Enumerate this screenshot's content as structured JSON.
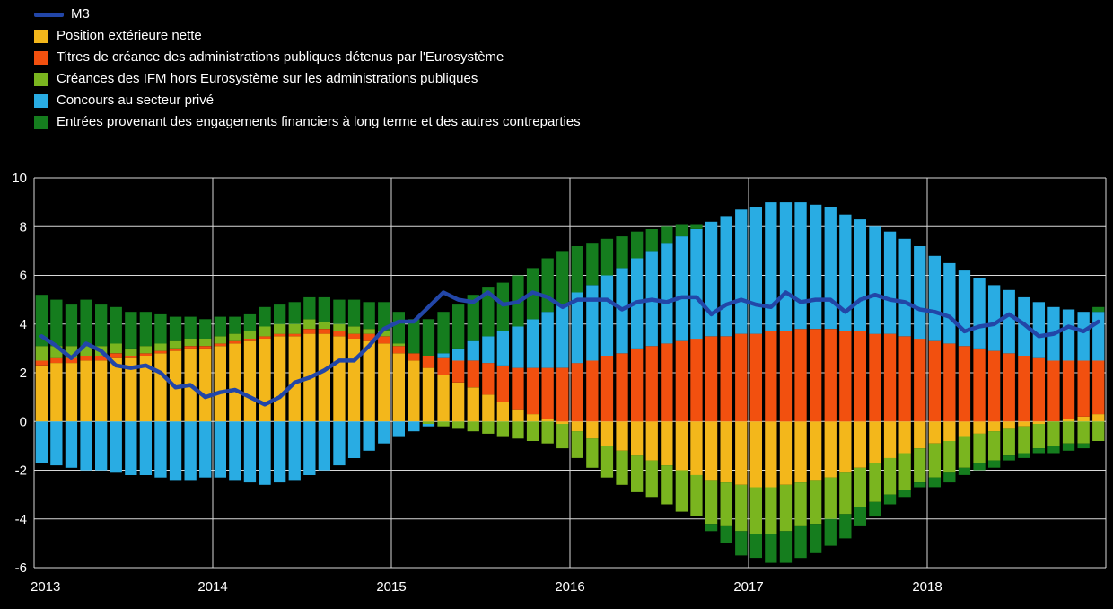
{
  "colors": {
    "background": "#000000",
    "grid": "#d9d9d9",
    "axis_text": "#ffffff"
  },
  "legend": {
    "position": "top-left",
    "items": [
      {
        "label": "M3",
        "color": "#2246a8",
        "marker": "line"
      },
      {
        "label": "Position extérieure nette",
        "color": "#f3b71b",
        "marker": "square"
      },
      {
        "label": "Titres de créance des administrations publiques détenus par l'Eurosystème",
        "color": "#f2500f",
        "marker": "square"
      },
      {
        "label": "Créances des IFM hors Eurosystème sur les administrations publiques",
        "color": "#7ab51f",
        "marker": "square"
      },
      {
        "label": "Concours au secteur privé",
        "color": "#29ace3",
        "marker": "square"
      },
      {
        "label": "Entrées provenant des engagements financiers à long terme et des autres contreparties",
        "color": "#157d1e",
        "marker": "square"
      }
    ]
  },
  "chart_data": {
    "type": "bar",
    "subtype": "stacked-monthly-contributions-with-line-overlay",
    "grid": true,
    "ylim": [
      -6,
      10
    ],
    "y_ticks": [
      10,
      8,
      6,
      4,
      2,
      0,
      -2,
      -4,
      -6
    ],
    "x_year_ticks": [
      "2013",
      "2014",
      "2015",
      "2016",
      "2017",
      "2018"
    ],
    "months": [
      "2013-01",
      "2013-02",
      "2013-03",
      "2013-04",
      "2013-05",
      "2013-06",
      "2013-07",
      "2013-08",
      "2013-09",
      "2013-10",
      "2013-11",
      "2013-12",
      "2014-01",
      "2014-02",
      "2014-03",
      "2014-04",
      "2014-05",
      "2014-06",
      "2014-07",
      "2014-08",
      "2014-09",
      "2014-10",
      "2014-11",
      "2014-12",
      "2015-01",
      "2015-02",
      "2015-03",
      "2015-04",
      "2015-05",
      "2015-06",
      "2015-07",
      "2015-08",
      "2015-09",
      "2015-10",
      "2015-11",
      "2015-12",
      "2016-01",
      "2016-02",
      "2016-03",
      "2016-04",
      "2016-05",
      "2016-06",
      "2016-07",
      "2016-08",
      "2016-09",
      "2016-10",
      "2016-11",
      "2016-12",
      "2017-01",
      "2017-02",
      "2017-03",
      "2017-04",
      "2017-05",
      "2017-06",
      "2017-07",
      "2017-08",
      "2017-09",
      "2017-10",
      "2017-11",
      "2017-12",
      "2018-01",
      "2018-02",
      "2018-03",
      "2018-04",
      "2018-05",
      "2018-06",
      "2018-07",
      "2018-08",
      "2018-09",
      "2018-10",
      "2018-11",
      "2018-12"
    ],
    "series": [
      {
        "name": "Position extérieure nette",
        "key": "position-exterieure-nette",
        "color": "#f3b71b",
        "values": [
          2.3,
          2.4,
          2.4,
          2.5,
          2.5,
          2.6,
          2.6,
          2.7,
          2.8,
          2.9,
          3.0,
          3.0,
          3.1,
          3.2,
          3.3,
          3.4,
          3.5,
          3.5,
          3.6,
          3.6,
          3.5,
          3.4,
          3.3,
          3.2,
          2.8,
          2.5,
          2.2,
          1.9,
          1.6,
          1.4,
          1.1,
          0.8,
          0.5,
          0.3,
          0.1,
          -0.1,
          -0.4,
          -0.7,
          -1.0,
          -1.2,
          -1.4,
          -1.6,
          -1.8,
          -2.0,
          -2.2,
          -2.4,
          -2.5,
          -2.6,
          -2.7,
          -2.7,
          -2.6,
          -2.5,
          -2.4,
          -2.3,
          -2.1,
          -1.9,
          -1.7,
          -1.5,
          -1.3,
          -1.1,
          -0.9,
          -0.8,
          -0.6,
          -0.5,
          -0.4,
          -0.3,
          -0.2,
          -0.1,
          0.0,
          0.1,
          0.2,
          0.3
        ]
      },
      {
        "name": "Titres de créance des administrations publiques détenus par l'Eurosystème",
        "key": "titres-apu-eurosysteme",
        "color": "#f2500f",
        "values": [
          0.2,
          0.2,
          0.2,
          0.2,
          0.2,
          0.2,
          0.1,
          0.1,
          0.1,
          0.1,
          0.1,
          0.1,
          0.1,
          0.1,
          0.1,
          0.1,
          0.1,
          0.1,
          0.2,
          0.2,
          0.2,
          0.2,
          0.3,
          0.3,
          0.3,
          0.3,
          0.5,
          0.7,
          0.9,
          1.1,
          1.3,
          1.5,
          1.7,
          1.9,
          2.1,
          2.2,
          2.4,
          2.5,
          2.7,
          2.8,
          3.0,
          3.1,
          3.2,
          3.3,
          3.4,
          3.5,
          3.5,
          3.6,
          3.6,
          3.7,
          3.7,
          3.8,
          3.8,
          3.8,
          3.7,
          3.7,
          3.6,
          3.6,
          3.5,
          3.4,
          3.3,
          3.2,
          3.1,
          3.0,
          2.9,
          2.8,
          2.7,
          2.6,
          2.5,
          2.4,
          2.3,
          2.2
        ]
      },
      {
        "name": "Créances des IFM hors Eurosystème sur les administrations publiques",
        "key": "creances-ifm-hors-eurosysteme",
        "color": "#7ab51f",
        "values": [
          0.6,
          0.5,
          0.5,
          0.4,
          0.4,
          0.4,
          0.3,
          0.3,
          0.3,
          0.3,
          0.3,
          0.3,
          0.3,
          0.3,
          0.3,
          0.4,
          0.4,
          0.4,
          0.4,
          0.3,
          0.3,
          0.3,
          0.2,
          0.2,
          0.1,
          0.0,
          -0.1,
          -0.2,
          -0.3,
          -0.4,
          -0.5,
          -0.6,
          -0.7,
          -0.8,
          -0.9,
          -1.0,
          -1.1,
          -1.2,
          -1.3,
          -1.4,
          -1.5,
          -1.5,
          -1.6,
          -1.7,
          -1.7,
          -1.8,
          -1.8,
          -1.9,
          -1.9,
          -1.9,
          -1.9,
          -1.8,
          -1.8,
          -1.7,
          -1.7,
          -1.6,
          -1.6,
          -1.5,
          -1.5,
          -1.4,
          -1.4,
          -1.3,
          -1.3,
          -1.2,
          -1.2,
          -1.1,
          -1.1,
          -1.0,
          -1.0,
          -0.9,
          -0.9,
          -0.8
        ]
      },
      {
        "name": "Concours au secteur privé",
        "key": "concours-secteur-prive",
        "color": "#29ace3",
        "values": [
          -1.7,
          -1.8,
          -1.9,
          -2.0,
          -2.0,
          -2.1,
          -2.2,
          -2.2,
          -2.3,
          -2.4,
          -2.4,
          -2.3,
          -2.3,
          -2.4,
          -2.5,
          -2.6,
          -2.5,
          -2.4,
          -2.2,
          -2.0,
          -1.8,
          -1.5,
          -1.2,
          -0.9,
          -0.6,
          -0.4,
          -0.1,
          0.2,
          0.5,
          0.8,
          1.1,
          1.4,
          1.7,
          2.0,
          2.3,
          2.6,
          2.9,
          3.1,
          3.3,
          3.5,
          3.7,
          3.9,
          4.1,
          4.3,
          4.5,
          4.7,
          4.9,
          5.1,
          5.2,
          5.3,
          5.3,
          5.2,
          5.1,
          5.0,
          4.8,
          4.6,
          4.4,
          4.2,
          4.0,
          3.8,
          3.5,
          3.3,
          3.1,
          2.9,
          2.7,
          2.6,
          2.4,
          2.3,
          2.2,
          2.1,
          2.0,
          2.0
        ]
      },
      {
        "name": "Entrées provenant des engagements financiers à long terme et des autres contreparties",
        "key": "entrees-engagements-lt-autres",
        "color": "#157d1e",
        "values": [
          2.1,
          1.9,
          1.7,
          1.9,
          1.7,
          1.5,
          1.5,
          1.4,
          1.2,
          1.0,
          0.9,
          0.8,
          0.8,
          0.7,
          0.7,
          0.8,
          0.8,
          0.9,
          0.9,
          1.0,
          1.0,
          1.1,
          1.1,
          1.2,
          1.3,
          1.4,
          1.5,
          1.7,
          1.8,
          1.9,
          2.0,
          2.0,
          2.1,
          2.1,
          2.2,
          2.2,
          1.9,
          1.7,
          1.5,
          1.3,
          1.1,
          0.9,
          0.7,
          0.5,
          0.2,
          -0.3,
          -0.7,
          -1.0,
          -1.0,
          -1.2,
          -1.3,
          -1.3,
          -1.2,
          -1.1,
          -1.0,
          -0.8,
          -0.6,
          -0.4,
          -0.3,
          -0.2,
          -0.4,
          -0.4,
          -0.3,
          -0.3,
          -0.3,
          -0.2,
          -0.2,
          -0.2,
          -0.3,
          -0.3,
          -0.2,
          0.2
        ]
      }
    ],
    "line": {
      "name": "M3",
      "key": "m3-growth-line",
      "color": "#2246a8",
      "values": [
        3.5,
        3.1,
        2.6,
        3.2,
        2.9,
        2.3,
        2.2,
        2.3,
        2.0,
        1.4,
        1.5,
        1.0,
        1.2,
        1.3,
        1.0,
        0.7,
        1.0,
        1.6,
        1.8,
        2.1,
        2.5,
        2.5,
        3.1,
        3.8,
        4.1,
        4.1,
        4.7,
        5.3,
        5.0,
        4.9,
        5.3,
        4.8,
        4.9,
        5.3,
        5.1,
        4.7,
        5.0,
        5.0,
        5.0,
        4.6,
        4.9,
        5.0,
        4.9,
        5.1,
        5.1,
        4.4,
        4.8,
        5.0,
        4.8,
        4.7,
        5.3,
        4.9,
        5.0,
        5.0,
        4.5,
        5.0,
        5.2,
        5.0,
        4.9,
        4.6,
        4.5,
        4.3,
        3.7,
        3.9,
        4.0,
        4.4,
        4.0,
        3.5,
        3.6,
        3.9,
        3.7,
        4.1
      ]
    }
  }
}
